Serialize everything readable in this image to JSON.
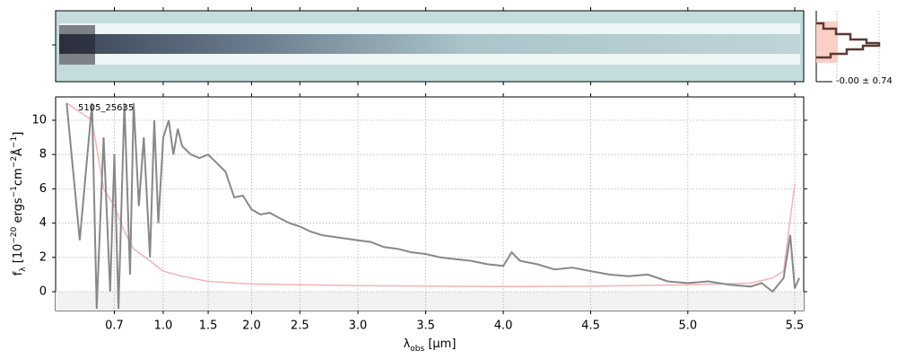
{
  "chart_data": {
    "type": "line",
    "xscale": "prism",
    "annotation": "5105_25635",
    "profile_label": "-0.00 ± 0.74",
    "xlabel": [
      {
        "text": "λ"
      },
      {
        "sub": "obs"
      },
      {
        "text": " [μm]"
      }
    ],
    "ylabel": [
      {
        "text": "f"
      },
      {
        "sub": "λ"
      },
      {
        "text": " [10"
      },
      {
        "sup": "−20"
      },
      {
        "text": " ergs"
      },
      {
        "sup": "−1"
      },
      {
        "text": "cm"
      },
      {
        "sup": "−2"
      },
      {
        "text": "Å"
      },
      {
        "sup": "−1"
      },
      {
        "text": "]"
      }
    ],
    "xlim": [
      0.46,
      5.54
    ],
    "ylim": [
      -1.1,
      11.36
    ],
    "xticks": [
      0.7,
      {
        "value": 1.0,
        "label": "1.0"
      },
      1.5,
      {
        "value": 2.0,
        "label": "2.0"
      },
      2.5,
      {
        "value": 3.0,
        "label": "3.0"
      },
      3.5,
      {
        "value": 4.0,
        "label": "4.0"
      },
      4.5,
      {
        "value": 5.0,
        "label": "5.0"
      },
      5.5
    ],
    "yticks": [
      0,
      2,
      4,
      6,
      8,
      10
    ],
    "grid": true,
    "series": [
      {
        "color": "#f4b4b4",
        "x": [
          0.5,
          0.6,
          0.65,
          0.7,
          0.75,
          0.8,
          0.9,
          1.0,
          1.2,
          1.5,
          2.0,
          3.0,
          4.0,
          4.5,
          5.0,
          5.3,
          5.4,
          5.45,
          5.5
        ],
        "values": [
          11,
          10,
          6,
          5,
          3.5,
          2.5,
          1.8,
          1.2,
          0.9,
          0.6,
          0.45,
          0.35,
          0.3,
          0.32,
          0.4,
          0.5,
          0.8,
          1.2,
          6.3
        ]
      },
      {
        "color": "#888888",
        "x": [
          0.5,
          0.55,
          0.6,
          0.62,
          0.65,
          0.68,
          0.7,
          0.72,
          0.75,
          0.78,
          0.8,
          0.83,
          0.86,
          0.9,
          0.93,
          0.96,
          1.0,
          1.05,
          1.1,
          1.15,
          1.2,
          1.3,
          1.4,
          1.5,
          1.6,
          1.7,
          1.8,
          1.9,
          2.0,
          2.1,
          2.2,
          2.3,
          2.4,
          2.5,
          2.6,
          2.7,
          2.8,
          2.9,
          3.0,
          3.1,
          3.2,
          3.3,
          3.4,
          3.5,
          3.6,
          3.7,
          3.8,
          3.9,
          4.0,
          4.05,
          4.1,
          4.2,
          4.3,
          4.4,
          4.5,
          4.6,
          4.7,
          4.8,
          4.9,
          5.0,
          5.1,
          5.2,
          5.3,
          5.35,
          5.4,
          5.45,
          5.48,
          5.5,
          5.52
        ],
        "values": [
          11,
          3,
          11,
          -1,
          9,
          0,
          8,
          -1,
          11,
          1,
          11,
          5,
          9,
          2,
          10,
          4,
          9,
          10,
          8,
          9.5,
          8.5,
          8,
          7.8,
          8,
          7.5,
          7,
          5.5,
          5.6,
          4.8,
          4.5,
          4.6,
          4.3,
          4,
          3.8,
          3.5,
          3.3,
          3.2,
          3.1,
          3.0,
          2.9,
          2.6,
          2.5,
          2.3,
          2.2,
          2.0,
          1.9,
          1.8,
          1.6,
          1.5,
          2.3,
          1.8,
          1.6,
          1.3,
          1.4,
          1.2,
          1.0,
          0.9,
          1.0,
          0.6,
          0.5,
          0.6,
          0.4,
          0.3,
          0.5,
          0.0,
          0.8,
          3.3,
          0.2,
          0.8
        ]
      }
    ]
  }
}
